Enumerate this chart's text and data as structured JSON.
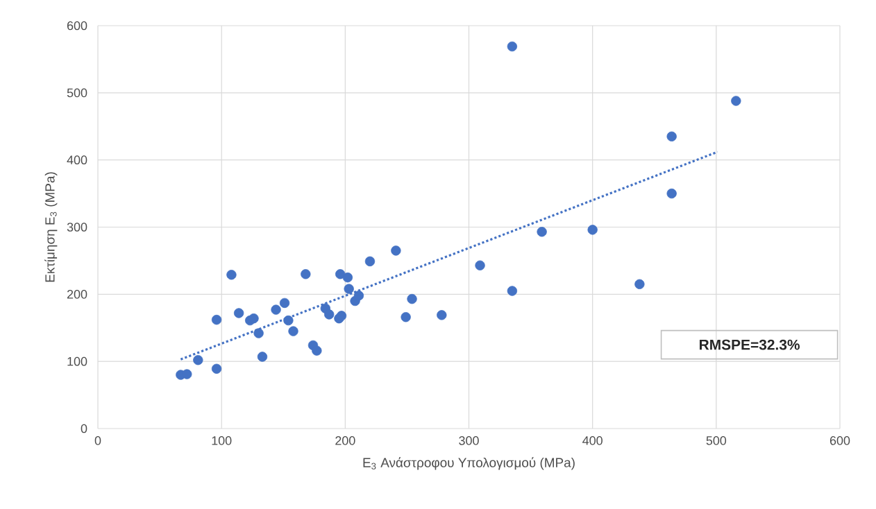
{
  "chart_data": {
    "type": "scatter",
    "xlabel": "E$_{3}$ Ανάστροφου Υπολογισμού (MPa)",
    "ylabel": "Εκτίμηση  E$_{3}$ (MPa)",
    "xlim": [
      0,
      600
    ],
    "ylim": [
      0,
      600
    ],
    "xticks": [
      0,
      100,
      200,
      300,
      400,
      500,
      600
    ],
    "yticks": [
      0,
      100,
      200,
      300,
      400,
      500,
      600
    ],
    "grid": true,
    "annotations": [
      "RMSPE=32.3%"
    ],
    "series": [
      {
        "color": "#4472c4",
        "marker": "circle",
        "x": [
          67,
          72,
          81,
          96,
          96,
          108,
          114,
          123,
          126,
          130,
          133,
          144,
          151,
          154,
          158,
          168,
          174,
          177,
          184,
          187,
          195,
          197,
          196,
          202,
          203,
          208,
          211,
          220,
          241,
          249,
          254,
          278,
          309,
          335,
          335,
          359,
          400,
          438,
          464,
          464,
          516
        ],
        "values": [
          80,
          81,
          102,
          89,
          162,
          229,
          172,
          161,
          164,
          142,
          107,
          177,
          187,
          161,
          145,
          230,
          124,
          116,
          179,
          170,
          164,
          168,
          230,
          225,
          208,
          190,
          198,
          249,
          265,
          166,
          193,
          169,
          243,
          205,
          569,
          293,
          296,
          215,
          435,
          350,
          488
        ]
      },
      {
        "type": "line",
        "color": "#4472c4",
        "marker": "none",
        "line_style": "dotted",
        "x": [
          67,
          501
        ],
        "values": [
          103,
          412
        ]
      }
    ]
  }
}
